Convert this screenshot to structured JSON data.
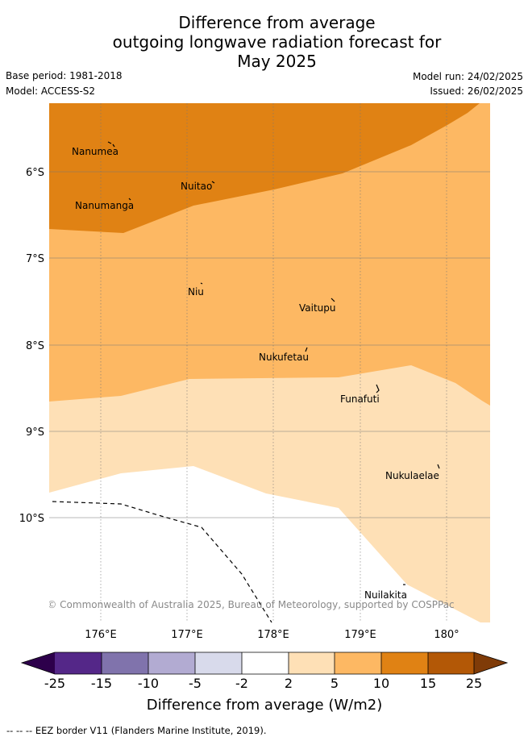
{
  "header": {
    "title_lines": [
      "Difference from average",
      "outgoing longwave radiation forecast for",
      "May 2025"
    ],
    "base_period": "Base period: 1981-2018",
    "model": "Model: ACCESS-S2",
    "model_run": "Model run: 24/02/2025",
    "issued": "Issued: 26/02/2025"
  },
  "map": {
    "lat_labels": [
      "6°S",
      "7°S",
      "8°S",
      "9°S",
      "10°S"
    ],
    "lon_labels": [
      "176°E",
      "177°E",
      "178°E",
      "179°E",
      "180°"
    ],
    "places": [
      "Nanumea",
      "Nuitao",
      "Nanumanga",
      "Niu",
      "Vaitupu",
      "Nukufetau",
      "Funafuti",
      "Nukulaelae",
      "Nuilakita"
    ],
    "copyright": "© Commonwealth of Australia 2025, Bureau of Meteorology, supported by COSPPac",
    "fill_colors": {
      "10_to_15": "#e08214",
      "5_to_10": "#fdb863",
      "2_to_5": "#fee0b6",
      "minus2_to_2": "#ffffff"
    }
  },
  "colorbar": {
    "ticks": [
      "-25",
      "-15",
      "-10",
      "-5",
      "-2",
      "2",
      "5",
      "10",
      "15",
      "25"
    ],
    "label": "Difference from average (W/m2)",
    "colors": [
      "#2d004b",
      "#542788",
      "#8073ac",
      "#b2abd2",
      "#d8daeb",
      "#ffffff",
      "#fee0b6",
      "#fdb863",
      "#e08214",
      "#b35806",
      "#7f3b08"
    ]
  },
  "legend": {
    "eez_note": "--  --  -- EEZ border V11 (Flanders Marine Institute, 2019)."
  }
}
